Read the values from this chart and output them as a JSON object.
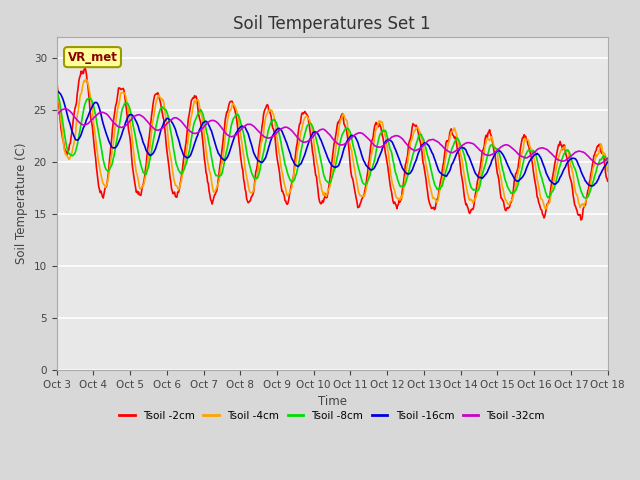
{
  "title": "Soil Temperatures Set 1",
  "xlabel": "Time",
  "ylabel": "Soil Temperature (C)",
  "ylim": [
    0,
    32
  ],
  "yticks": [
    0,
    5,
    10,
    15,
    20,
    25,
    30
  ],
  "colors": {
    "Tsoil -2cm": "#ff0000",
    "Tsoil -4cm": "#ffa500",
    "Tsoil -8cm": "#00dd00",
    "Tsoil -16cm": "#0000dd",
    "Tsoil -32cm": "#cc00cc"
  },
  "legend_labels": [
    "Tsoil -2cm",
    "Tsoil -4cm",
    "Tsoil -8cm",
    "Tsoil -16cm",
    "Tsoil -32cm"
  ],
  "annotation_text": "VR_met",
  "n_days": 15,
  "points_per_day": 48,
  "axes_bg_color": "#e8e8e8",
  "grid_color": "#ffffff",
  "xtick_labels": [
    "Oct 3",
    "Oct 4",
    "Oct 5",
    "Oct 6",
    "Oct 7",
    "Oct 8",
    "Oct 9",
    "Oct 10",
    "Oct 11",
    "Oct 12",
    "Oct 13",
    "Oct 14",
    "Oct 15",
    "Oct 16",
    "Oct 17",
    "Oct 18"
  ],
  "title_fontsize": 12,
  "figwidth": 6.4,
  "figheight": 4.8,
  "dpi": 100
}
